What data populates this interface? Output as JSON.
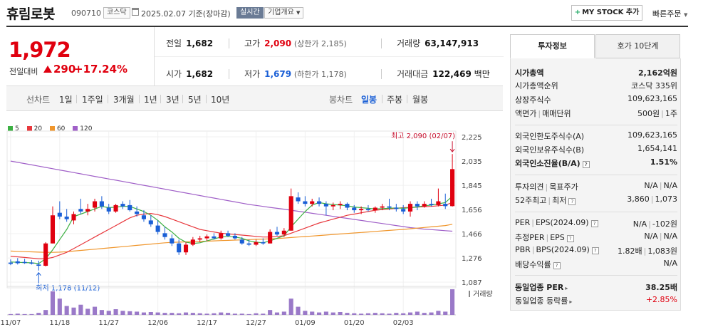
{
  "header": {
    "name": "휴림로봇",
    "code": "090710",
    "market": "코스닥",
    "date": "2025.02.07",
    "basis": "기준(장마감)",
    "live_label": "실시간",
    "overview_label": "기업개요",
    "mystock_label": "MY STOCK 추가",
    "quick_order_label": "빠른주문"
  },
  "price": {
    "current": "1,972",
    "prev_label": "전일대비",
    "change": "290",
    "rate": "+17.24%"
  },
  "quote": {
    "prev_close_label": "전일",
    "prev_close": "1,682",
    "high_label": "고가",
    "high": "2,090",
    "upper_limit": "(상한가 2,185)",
    "volume_label": "거래량",
    "volume": "63,147,913",
    "open_label": "시가",
    "open": "1,682",
    "low_label": "저가",
    "low": "1,679",
    "lower_limit": "(하한가 1,178)",
    "amount_label": "거래대금",
    "amount": "122,469",
    "amount_unit": "백만"
  },
  "tabs": {
    "line_label": "선차트",
    "periods": [
      "1일",
      "1주일",
      "3개월",
      "1년",
      "3년",
      "5년",
      "10년"
    ],
    "candle_label": "봉차트",
    "candle_periods": [
      "일봉",
      "주봉",
      "월봉"
    ],
    "active_candle": "일봉"
  },
  "chart_data": {
    "type": "candlestick",
    "legend": [
      "5",
      "20",
      "60",
      "120"
    ],
    "colors": {
      "ma5": "#3cb043",
      "ma20": "#e8383d",
      "ma60": "#f0962c",
      "ma120": "#a060c8",
      "up": "#e0000f",
      "down": "#1a5fd6",
      "volume": "#9a79c8"
    },
    "y_ticks": [
      "2,225",
      "2,035",
      "1,845",
      "1,656",
      "1,466",
      "1,276",
      "1,087"
    ],
    "ylim": [
      1087,
      2225
    ],
    "x_labels": [
      "11/07",
      "11/18",
      "11/27",
      "12/06",
      "12/17",
      "12/27",
      "01/09",
      "01/20",
      "02/03"
    ],
    "x_label_index": [
      0,
      7,
      14,
      21,
      28,
      35,
      42,
      49,
      56
    ],
    "high_annotation": "최고 2,090 (02/07)",
    "low_annotation": "최저 1,178 (11/12)",
    "volume_label": "거래량",
    "candles": [
      {
        "o": 1240,
        "h": 1265,
        "l": 1220,
        "c": 1230
      },
      {
        "o": 1250,
        "h": 1275,
        "l": 1225,
        "c": 1235
      },
      {
        "o": 1245,
        "h": 1270,
        "l": 1230,
        "c": 1240
      },
      {
        "o": 1240,
        "h": 1260,
        "l": 1225,
        "c": 1235
      },
      {
        "o": 1225,
        "h": 1255,
        "l": 1178,
        "c": 1215
      },
      {
        "o": 1215,
        "h": 1400,
        "l": 1210,
        "c": 1390
      },
      {
        "o": 1390,
        "h": 1680,
        "l": 1390,
        "c": 1610
      },
      {
        "o": 1630,
        "h": 1720,
        "l": 1580,
        "c": 1600
      },
      {
        "o": 1600,
        "h": 1660,
        "l": 1560,
        "c": 1580
      },
      {
        "o": 1570,
        "h": 1640,
        "l": 1540,
        "c": 1620
      },
      {
        "o": 1660,
        "h": 1740,
        "l": 1620,
        "c": 1640
      },
      {
        "o": 1640,
        "h": 1700,
        "l": 1610,
        "c": 1660
      },
      {
        "o": 1670,
        "h": 1740,
        "l": 1640,
        "c": 1720
      },
      {
        "o": 1720,
        "h": 1760,
        "l": 1660,
        "c": 1680
      },
      {
        "o": 1670,
        "h": 1700,
        "l": 1620,
        "c": 1640
      },
      {
        "o": 1640,
        "h": 1700,
        "l": 1630,
        "c": 1690
      },
      {
        "o": 1700,
        "h": 1720,
        "l": 1660,
        "c": 1680
      },
      {
        "o": 1690,
        "h": 1730,
        "l": 1640,
        "c": 1650
      },
      {
        "o": 1640,
        "h": 1680,
        "l": 1600,
        "c": 1620
      },
      {
        "o": 1610,
        "h": 1650,
        "l": 1560,
        "c": 1580
      },
      {
        "o": 1570,
        "h": 1610,
        "l": 1520,
        "c": 1540
      },
      {
        "o": 1530,
        "h": 1570,
        "l": 1460,
        "c": 1480
      },
      {
        "o": 1470,
        "h": 1520,
        "l": 1420,
        "c": 1440
      },
      {
        "o": 1430,
        "h": 1460,
        "l": 1370,
        "c": 1390
      },
      {
        "o": 1390,
        "h": 1420,
        "l": 1300,
        "c": 1320
      },
      {
        "o": 1320,
        "h": 1400,
        "l": 1300,
        "c": 1380
      },
      {
        "o": 1380,
        "h": 1440,
        "l": 1370,
        "c": 1420
      },
      {
        "o": 1420,
        "h": 1450,
        "l": 1400,
        "c": 1430
      },
      {
        "o": 1430,
        "h": 1460,
        "l": 1410,
        "c": 1445
      },
      {
        "o": 1445,
        "h": 1470,
        "l": 1420,
        "c": 1430
      },
      {
        "o": 1430,
        "h": 1490,
        "l": 1420,
        "c": 1470
      },
      {
        "o": 1470,
        "h": 1490,
        "l": 1440,
        "c": 1450
      },
      {
        "o": 1450,
        "h": 1470,
        "l": 1420,
        "c": 1430
      },
      {
        "o": 1420,
        "h": 1440,
        "l": 1380,
        "c": 1390
      },
      {
        "o": 1390,
        "h": 1420,
        "l": 1370,
        "c": 1380
      },
      {
        "o": 1380,
        "h": 1420,
        "l": 1370,
        "c": 1400
      },
      {
        "o": 1400,
        "h": 1430,
        "l": 1380,
        "c": 1390
      },
      {
        "o": 1390,
        "h": 1500,
        "l": 1390,
        "c": 1480
      },
      {
        "o": 1480,
        "h": 1520,
        "l": 1450,
        "c": 1460
      },
      {
        "o": 1460,
        "h": 1510,
        "l": 1440,
        "c": 1490
      },
      {
        "o": 1490,
        "h": 1820,
        "l": 1490,
        "c": 1760
      },
      {
        "o": 1750,
        "h": 1790,
        "l": 1700,
        "c": 1720
      },
      {
        "o": 1720,
        "h": 1760,
        "l": 1680,
        "c": 1700
      },
      {
        "o": 1700,
        "h": 1740,
        "l": 1680,
        "c": 1720
      },
      {
        "o": 1720,
        "h": 1750,
        "l": 1680,
        "c": 1700
      },
      {
        "o": 1700,
        "h": 1720,
        "l": 1610,
        "c": 1680
      },
      {
        "o": 1680,
        "h": 1710,
        "l": 1650,
        "c": 1690
      },
      {
        "o": 1690,
        "h": 1720,
        "l": 1660,
        "c": 1700
      },
      {
        "o": 1700,
        "h": 1710,
        "l": 1650,
        "c": 1670
      },
      {
        "o": 1670,
        "h": 1690,
        "l": 1630,
        "c": 1650
      },
      {
        "o": 1650,
        "h": 1680,
        "l": 1620,
        "c": 1660
      },
      {
        "o": 1660,
        "h": 1690,
        "l": 1640,
        "c": 1650
      },
      {
        "o": 1650,
        "h": 1680,
        "l": 1630,
        "c": 1670
      },
      {
        "o": 1670,
        "h": 1700,
        "l": 1650,
        "c": 1680
      },
      {
        "o": 1680,
        "h": 1740,
        "l": 1650,
        "c": 1670
      },
      {
        "o": 1670,
        "h": 1700,
        "l": 1640,
        "c": 1660
      },
      {
        "o": 1660,
        "h": 1690,
        "l": 1620,
        "c": 1640
      },
      {
        "o": 1640,
        "h": 1720,
        "l": 1600,
        "c": 1700
      },
      {
        "o": 1700,
        "h": 1720,
        "l": 1650,
        "c": 1680
      },
      {
        "o": 1680,
        "h": 1720,
        "l": 1670,
        "c": 1700
      },
      {
        "o": 1700,
        "h": 1740,
        "l": 1680,
        "c": 1690
      },
      {
        "o": 1690,
        "h": 1820,
        "l": 1680,
        "c": 1720
      },
      {
        "o": 1700,
        "h": 1780,
        "l": 1660,
        "c": 1682
      },
      {
        "o": 1682,
        "h": 2090,
        "l": 1679,
        "c": 1972
      }
    ],
    "volumes": [
      2,
      3,
      2,
      2,
      5,
      12,
      58,
      40,
      22,
      18,
      25,
      15,
      20,
      12,
      10,
      14,
      10,
      9,
      8,
      6,
      7,
      6,
      5,
      5,
      4,
      6,
      5,
      4,
      3,
      4,
      6,
      5,
      3,
      3,
      2,
      4,
      3,
      12,
      6,
      8,
      40,
      20,
      10,
      8,
      6,
      8,
      6,
      7,
      5,
      4,
      3,
      4,
      5,
      4,
      3,
      5,
      4,
      6,
      8,
      5,
      6,
      10,
      8,
      63
    ],
    "ma5": [
      1245,
      1242,
      1240,
      1238,
      1232,
      1270,
      1340,
      1420,
      1500,
      1600,
      1620,
      1640,
      1660,
      1680,
      1670,
      1675,
      1680,
      1680,
      1660,
      1640,
      1610,
      1570,
      1520,
      1480,
      1430,
      1400,
      1390,
      1395,
      1410,
      1425,
      1440,
      1445,
      1440,
      1430,
      1410,
      1400,
      1395,
      1410,
      1430,
      1450,
      1520,
      1580,
      1640,
      1690,
      1710,
      1700,
      1695,
      1690,
      1685,
      1675,
      1670,
      1665,
      1660,
      1662,
      1665,
      1668,
      1665,
      1670,
      1675,
      1685,
      1690,
      1700,
      1710,
      1760
    ],
    "ma20": [
      1290,
      1285,
      1280,
      1275,
      1270,
      1270,
      1280,
      1300,
      1320,
      1350,
      1380,
      1410,
      1440,
      1470,
      1500,
      1530,
      1560,
      1590,
      1610,
      1620,
      1625,
      1615,
      1600,
      1580,
      1560,
      1540,
      1520,
      1500,
      1490,
      1480,
      1470,
      1465,
      1460,
      1455,
      1450,
      1445,
      1440,
      1440,
      1445,
      1450,
      1470,
      1490,
      1510,
      1530,
      1550,
      1565,
      1580,
      1595,
      1610,
      1620,
      1630,
      1640,
      1650,
      1655,
      1660,
      1665,
      1670,
      1672,
      1675,
      1678,
      1680,
      1685,
      1690,
      1710
    ],
    "ma60": [
      1330,
      1328,
      1326,
      1324,
      1322,
      1320,
      1320,
      1322,
      1325,
      1330,
      1335,
      1340,
      1345,
      1350,
      1355,
      1360,
      1365,
      1370,
      1375,
      1380,
      1385,
      1390,
      1395,
      1398,
      1400,
      1402,
      1404,
      1406,
      1408,
      1410,
      1412,
      1414,
      1416,
      1418,
      1420,
      1422,
      1424,
      1426,
      1428,
      1432,
      1436,
      1440,
      1444,
      1448,
      1452,
      1456,
      1460,
      1464,
      1468,
      1472,
      1476,
      1480,
      1484,
      1488,
      1492,
      1496,
      1500,
      1505,
      1510,
      1515,
      1520,
      1525,
      1530,
      1540
    ],
    "ma120": [
      2035,
      2025,
      2015,
      2005,
      1995,
      1985,
      1975,
      1965,
      1955,
      1945,
      1935,
      1925,
      1915,
      1905,
      1895,
      1885,
      1875,
      1865,
      1855,
      1845,
      1835,
      1825,
      1815,
      1805,
      1795,
      1785,
      1775,
      1765,
      1755,
      1745,
      1735,
      1725,
      1715,
      1705,
      1695,
      1688,
      1680,
      1672,
      1665,
      1658,
      1650,
      1642,
      1634,
      1626,
      1618,
      1610,
      1602,
      1594,
      1586,
      1578,
      1570,
      1562,
      1554,
      1546,
      1538,
      1530,
      1522,
      1514,
      1508,
      1502,
      1498,
      1494,
      1490,
      1486
    ]
  },
  "side": {
    "tab_info": "투자정보",
    "tab_orderbook": "호가 10단계",
    "rows": {
      "mktcap_label": "시가총액",
      "mktcap": "2,162억원",
      "rank_label": "시가총액순위",
      "rank": "코스닥 335위",
      "shares_label": "상장주식수",
      "shares": "109,623,165",
      "par_label": "액면가",
      "unit_label": "매매단위",
      "par": "500원",
      "unit": "1주",
      "foreign_limit_label": "외국인한도주식수(A)",
      "foreign_limit": "109,623,165",
      "foreign_hold_label": "외국인보유주식수(B)",
      "foreign_hold": "1,654,141",
      "foreign_rate_label": "외국인소진율(B/A)",
      "foreign_rate": "1.51%",
      "opinion_label": "투자의견",
      "target_label": "목표주가",
      "opinion": "N/A",
      "target": "N/A",
      "w52_high_label": "52주최고",
      "w52_low_label": "최저",
      "w52_high": "3,860",
      "w52_low": "1,073",
      "per_label": "PER",
      "eps_label": "EPS(2024.09)",
      "per": "N/A",
      "eps": "-102원",
      "est_per_label": "추정PER",
      "est_eps_label": "EPS",
      "est_per": "N/A",
      "est_eps": "N/A",
      "pbr_label": "PBR",
      "bps_label": "BPS(2024.09)",
      "pbr": "1.82배",
      "bps": "1,083원",
      "div_label": "배당수익률",
      "div": "N/A",
      "ind_per_label": "동일업종 PER",
      "ind_per": "38.25배",
      "ind_rate_label": "동일업종 등락률",
      "ind_rate": "+2.85%"
    }
  }
}
